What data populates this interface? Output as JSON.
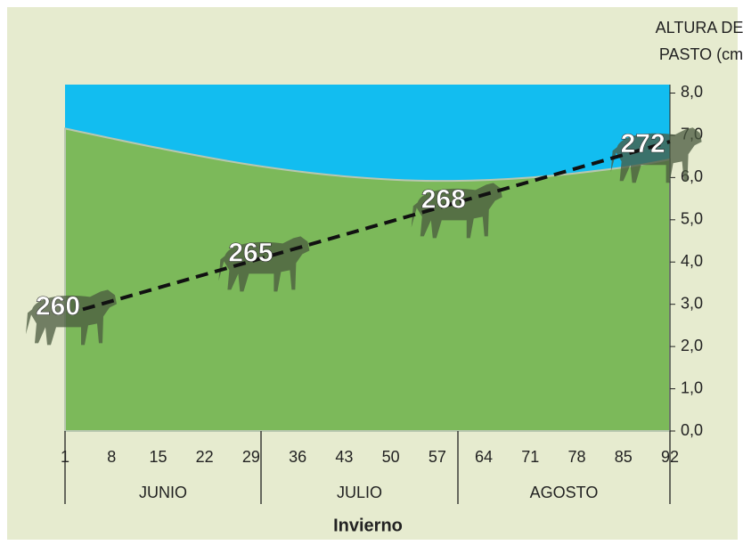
{
  "chart_data": {
    "type": "area",
    "y_label": [
      "ALTURA DEL",
      "PASTO (cm)"
    ],
    "season": "Invierno",
    "months": [
      "JUNIO",
      "JULIO",
      "AGOSTO"
    ],
    "x": [
      1,
      15,
      29,
      43,
      57,
      71,
      85,
      92
    ],
    "series": [
      {
        "values": [
          7.16,
          6.7,
          6.3,
          6.03,
          5.92,
          6.0,
          6.24,
          6.43
        ],
        "color": "#7cb95a",
        "top_color": "#12bdf0"
      }
    ],
    "trend": {
      "x": [
        1,
        92
      ],
      "values": [
        2.88,
        6.85
      ]
    },
    "cow_weights": {
      "x": [
        1,
        30,
        59,
        89
      ],
      "values": [
        260,
        265,
        268,
        272
      ]
    },
    "xlim": [
      1,
      92
    ],
    "xticks": [
      1,
      8,
      15,
      22,
      29,
      36,
      43,
      50,
      57,
      64,
      71,
      78,
      85,
      92
    ],
    "ylim": [
      0,
      8.2
    ],
    "yticks": [
      {
        "value": 0,
        "label": "0,0"
      },
      {
        "value": 1,
        "label": "1,0"
      },
      {
        "value": 2,
        "label": "2,0"
      },
      {
        "value": 3,
        "label": "3,0"
      },
      {
        "value": 4,
        "label": "4,0"
      },
      {
        "value": 5,
        "label": "5,0"
      },
      {
        "value": 6,
        "label": "6,0"
      },
      {
        "value": 7,
        "label": "7,0"
      },
      {
        "value": 8,
        "label": "8,0"
      }
    ]
  }
}
